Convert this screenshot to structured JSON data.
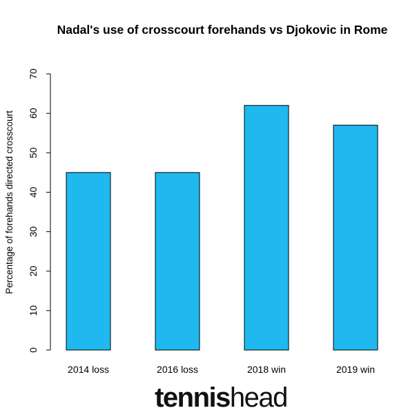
{
  "chart_data": {
    "type": "bar",
    "title": "Nadal's use of crosscourt forehands vs Djokovic in Rome",
    "xlabel": "",
    "ylabel": "Percentage of forehands directed crosscourt",
    "categories": [
      "2014 loss",
      "2016 loss",
      "2018 win",
      "2019 win"
    ],
    "values": [
      45,
      45,
      62,
      57
    ],
    "ylim": [
      0,
      70
    ],
    "yticks": [
      0,
      10,
      20,
      30,
      40,
      50,
      60,
      70
    ],
    "bar_color": "#1fb8ef",
    "bar_edge_color": "#000000",
    "grid": false,
    "legend": "none"
  },
  "brand": {
    "part1": "tennis",
    "part2": "head"
  }
}
